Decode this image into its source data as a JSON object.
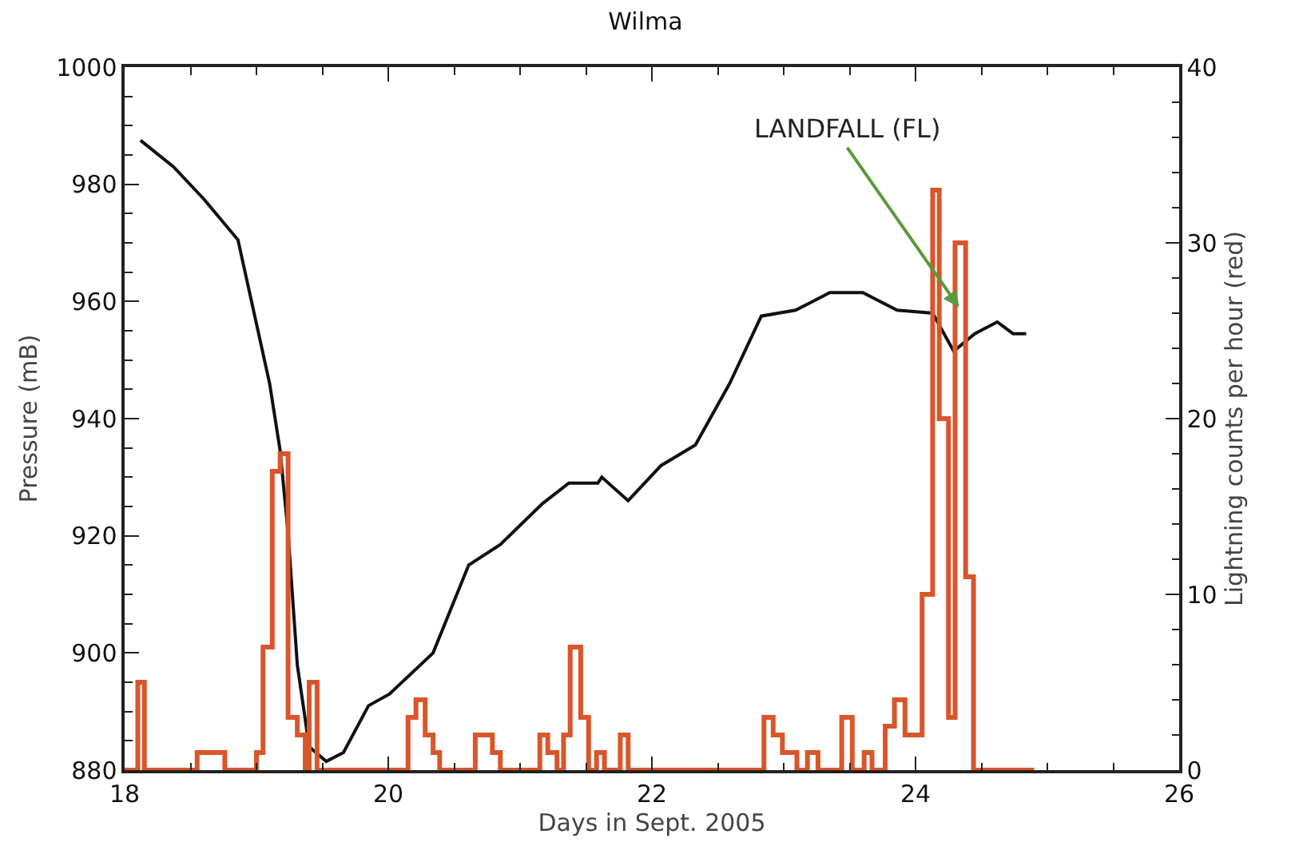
{
  "chart_data": {
    "type": "line",
    "title": "Wilma",
    "xlabel": "Days in Sept. 2005",
    "ylabel": "Pressure (mB)",
    "y2label": "Lightning counts per hour (red)",
    "annotations": [
      {
        "text": "LANDFALL (FL)",
        "x": 24.33,
        "y": 959
      }
    ],
    "series": [
      {
        "color": "#111111",
        "x": [
          18.12,
          18.37,
          18.6,
          18.86,
          19.1,
          19.18,
          19.24,
          19.31,
          19.4,
          19.53,
          19.66,
          19.85,
          20.01,
          20.34,
          20.61,
          20.85,
          21.17,
          21.37,
          21.59,
          21.62,
          21.82,
          22.07,
          22.33,
          22.59,
          22.83,
          23.09,
          23.35,
          23.6,
          23.86,
          24.13,
          24.29,
          24.45,
          24.62,
          24.74,
          24.84
        ],
        "values": [
          987.5,
          983,
          977.5,
          970.5,
          946,
          934.5,
          920.5,
          898,
          884,
          881.5,
          883,
          891,
          893,
          900,
          915,
          918.5,
          925.5,
          929,
          929,
          930,
          926,
          932,
          935.5,
          946,
          957.5,
          958.5,
          961.5,
          961.5,
          958.5,
          958,
          951.5,
          954.5,
          956.5,
          954.5,
          954.5
        ]
      },
      {
        "type": "step",
        "axis": "y2",
        "color": "#d9562b",
        "x": [
          18.0,
          18.1,
          18.15,
          18.55,
          18.76,
          19.0,
          19.05,
          19.12,
          19.18,
          19.24,
          19.31,
          19.37,
          19.4,
          19.46,
          20.15,
          20.21,
          20.28,
          20.34,
          20.39,
          20.66,
          20.79,
          20.85,
          21.15,
          21.21,
          21.28,
          21.33,
          21.38,
          21.46,
          21.52,
          21.58,
          21.64,
          21.76,
          21.82,
          22.85,
          22.92,
          22.99,
          23.1,
          23.18,
          23.26,
          23.44,
          23.52,
          23.61,
          23.67,
          23.77,
          23.84,
          23.92,
          24.05,
          24.13,
          24.18,
          24.25,
          24.3,
          24.38,
          24.44,
          24.9
        ],
        "values": [
          0,
          5,
          0,
          1,
          0,
          1,
          7,
          17,
          18,
          3,
          2,
          0,
          5,
          0,
          3,
          4,
          2,
          1,
          0,
          2,
          1,
          0,
          2,
          1,
          0,
          2,
          7,
          3,
          0,
          1,
          0,
          2,
          0,
          3,
          2,
          1,
          0,
          1,
          0,
          3,
          0,
          1,
          0,
          2.5,
          4,
          2,
          10,
          33,
          20,
          3,
          30,
          11,
          0,
          0
        ]
      }
    ],
    "xlim": [
      18,
      26
    ],
    "xticks": [
      18,
      20,
      22,
      24,
      26
    ],
    "ylim": [
      880,
      1000
    ],
    "yticks": [
      880,
      900,
      920,
      940,
      960,
      980,
      1000
    ],
    "y2lim": [
      0,
      40
    ],
    "y2ticks": [
      0,
      10,
      20,
      30,
      40
    ],
    "grid": false,
    "marker": "none",
    "line_style": "solid"
  }
}
